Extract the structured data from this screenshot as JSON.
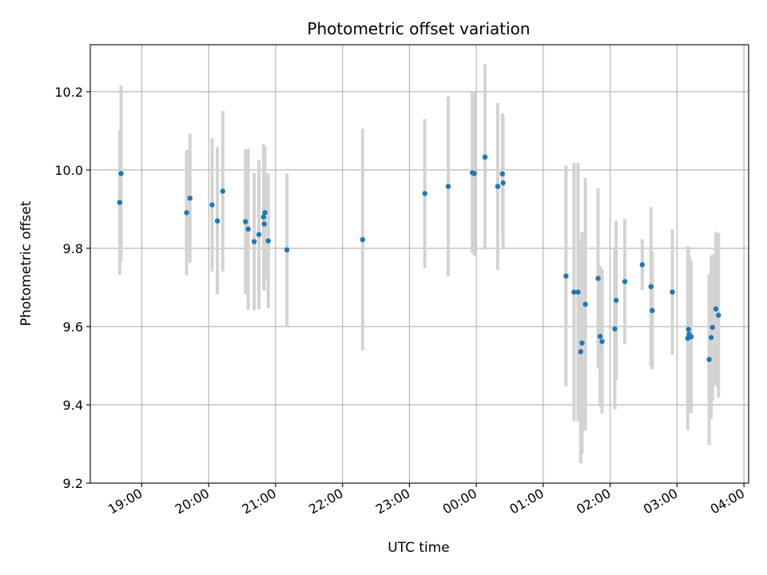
{
  "chart_data": {
    "type": "scatter",
    "title": "Photometric offset variation",
    "xlabel": "UTC time",
    "ylabel": "Photometric offset",
    "x_unit": "hours since 00:00 UTC (negative = previous day)",
    "xlim": [
      -5.77,
      4.07
    ],
    "ylim": [
      9.2,
      10.32
    ],
    "x_ticks": [
      {
        "value": -5,
        "label": "19:00"
      },
      {
        "value": -4,
        "label": "20:00"
      },
      {
        "value": -3,
        "label": "21:00"
      },
      {
        "value": -2,
        "label": "22:00"
      },
      {
        "value": -1,
        "label": "23:00"
      },
      {
        "value": 0,
        "label": "00:00"
      },
      {
        "value": 1,
        "label": "01:00"
      },
      {
        "value": 2,
        "label": "02:00"
      },
      {
        "value": 3,
        "label": "03:00"
      },
      {
        "value": 4,
        "label": "04:00"
      }
    ],
    "y_ticks": [
      {
        "value": 9.2,
        "label": "9.2"
      },
      {
        "value": 9.4,
        "label": "9.4"
      },
      {
        "value": 9.6,
        "label": "9.6"
      },
      {
        "value": 9.8,
        "label": "9.8"
      },
      {
        "value": 10.0,
        "label": "10.0"
      },
      {
        "value": 10.2,
        "label": "10.2"
      }
    ],
    "grid": true,
    "colors": {
      "point": "#1f77b4",
      "errorbar": "#d3d3d3",
      "grid": "#b0b0b0"
    },
    "points": [
      {
        "x": -5.33,
        "y": 9.917,
        "err": 0.185
      },
      {
        "x": -5.31,
        "y": 9.991,
        "err": 0.225
      },
      {
        "x": -4.33,
        "y": 9.891,
        "err": 0.16
      },
      {
        "x": -4.28,
        "y": 9.928,
        "err": 0.165
      },
      {
        "x": -3.95,
        "y": 9.911,
        "err": 0.17
      },
      {
        "x": -3.87,
        "y": 9.87,
        "err": 0.188
      },
      {
        "x": -3.79,
        "y": 9.946,
        "err": 0.205
      },
      {
        "x": -3.45,
        "y": 9.868,
        "err": 0.185
      },
      {
        "x": -3.41,
        "y": 9.849,
        "err": 0.206
      },
      {
        "x": -3.32,
        "y": 9.817,
        "err": 0.175
      },
      {
        "x": -3.25,
        "y": 9.835,
        "err": 0.19
      },
      {
        "x": -3.18,
        "y": 9.88,
        "err": 0.185
      },
      {
        "x": -3.17,
        "y": 9.862,
        "err": 0.17
      },
      {
        "x": -3.16,
        "y": 9.891,
        "err": 0.17
      },
      {
        "x": -3.11,
        "y": 9.819,
        "err": 0.172
      },
      {
        "x": -2.83,
        "y": 9.796,
        "err": 0.195
      },
      {
        "x": -1.7,
        "y": 9.822,
        "err": 0.283
      },
      {
        "x": -0.77,
        "y": 9.94,
        "err": 0.19
      },
      {
        "x": -0.42,
        "y": 9.958,
        "err": 0.23
      },
      {
        "x": -0.06,
        "y": 9.993,
        "err": 0.205
      },
      {
        "x": -0.03,
        "y": 9.991,
        "err": 0.21
      },
      {
        "x": 0.13,
        "y": 10.033,
        "err": 0.237
      },
      {
        "x": 0.32,
        "y": 9.958,
        "err": 0.213
      },
      {
        "x": 0.39,
        "y": 9.99,
        "err": 0.155
      },
      {
        "x": 0.4,
        "y": 9.967,
        "err": 0.17
      },
      {
        "x": 1.34,
        "y": 9.729,
        "err": 0.282
      },
      {
        "x": 1.46,
        "y": 9.688,
        "err": 0.33
      },
      {
        "x": 1.52,
        "y": 9.688,
        "err": 0.33
      },
      {
        "x": 1.56,
        "y": 9.536,
        "err": 0.285
      },
      {
        "x": 1.58,
        "y": 9.558,
        "err": 0.283
      },
      {
        "x": 1.63,
        "y": 9.657,
        "err": 0.323
      },
      {
        "x": 1.82,
        "y": 9.723,
        "err": 0.23
      },
      {
        "x": 1.85,
        "y": 9.575,
        "err": 0.18
      },
      {
        "x": 1.88,
        "y": 9.562,
        "err": 0.184
      },
      {
        "x": 2.07,
        "y": 9.594,
        "err": 0.205
      },
      {
        "x": 2.09,
        "y": 9.667,
        "err": 0.203
      },
      {
        "x": 2.22,
        "y": 9.715,
        "err": 0.16
      },
      {
        "x": 2.48,
        "y": 9.758,
        "err": 0.065
      },
      {
        "x": 2.61,
        "y": 9.702,
        "err": 0.203
      },
      {
        "x": 2.63,
        "y": 9.641,
        "err": 0.15
      },
      {
        "x": 2.93,
        "y": 9.688,
        "err": 0.16
      },
      {
        "x": 3.16,
        "y": 9.57,
        "err": 0.235
      },
      {
        "x": 3.17,
        "y": 9.593,
        "err": 0.21
      },
      {
        "x": 3.18,
        "y": 9.58,
        "err": 0.2
      },
      {
        "x": 3.21,
        "y": 9.574,
        "err": 0.195
      },
      {
        "x": 3.48,
        "y": 9.516,
        "err": 0.218
      },
      {
        "x": 3.51,
        "y": 9.572,
        "err": 0.208
      },
      {
        "x": 3.53,
        "y": 9.598,
        "err": 0.187
      },
      {
        "x": 3.58,
        "y": 9.645,
        "err": 0.197
      },
      {
        "x": 3.62,
        "y": 9.629,
        "err": 0.21
      }
    ]
  }
}
